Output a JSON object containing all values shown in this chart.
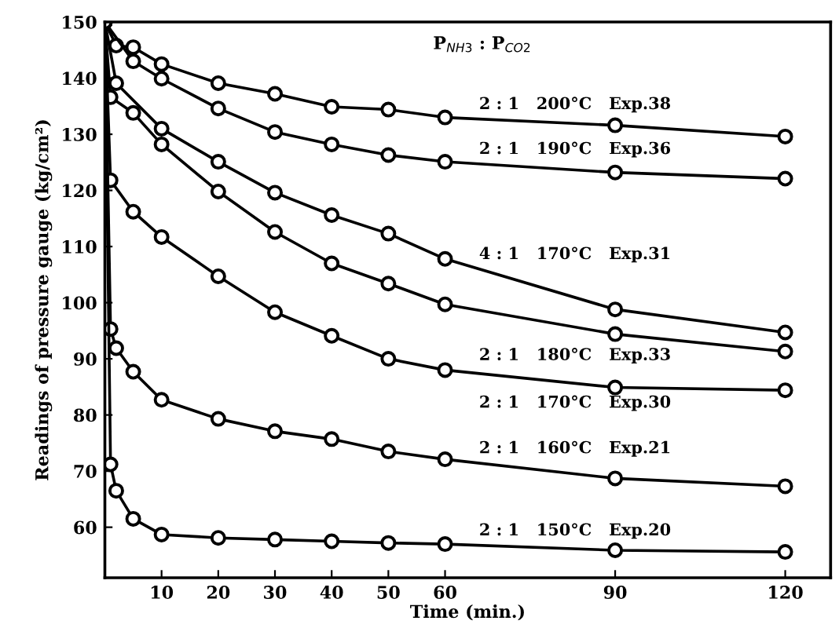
{
  "chart_data": {
    "type": "line",
    "xlabel": "Time (min.)",
    "ylabel": "Readings of pressure gauge (kg/cm²)",
    "legend_title": "P$_{NH3}$ : P$_{CO2}$",
    "xlim": [
      0,
      128
    ],
    "ylim": [
      51,
      150
    ],
    "xticks": [
      10,
      20,
      30,
      40,
      50,
      60,
      90,
      120
    ],
    "yticks": [
      60,
      70,
      80,
      90,
      100,
      110,
      120,
      130,
      140,
      150
    ],
    "marker": "circle",
    "line_style": "solid",
    "grid": false,
    "legend": false,
    "series": [
      {
        "name": "2 : 1   200°C   Exp.38",
        "color": "#000000",
        "x": [
          0,
          2,
          5,
          10,
          20,
          30,
          40,
          50,
          60,
          90,
          120
        ],
        "values": [
          150,
          145.8,
          145.5,
          142.5,
          139.1,
          137.2,
          134.9,
          134.4,
          133.0,
          131.6,
          129.6
        ]
      },
      {
        "name": "2 : 1   190°C   Exp.36",
        "color": "#000000",
        "x": [
          0,
          5,
          10,
          20,
          30,
          40,
          50,
          60,
          90,
          120
        ],
        "values": [
          150,
          143.0,
          139.9,
          134.6,
          130.4,
          128.2,
          126.3,
          125.1,
          123.2,
          122.1
        ]
      },
      {
        "name": "4 : 1   170°C   Exp.31",
        "color": "#000000",
        "x": [
          0,
          2,
          10,
          20,
          30,
          40,
          50,
          60,
          90,
          120
        ],
        "values": [
          150,
          139.1,
          131.0,
          125.1,
          119.6,
          115.6,
          112.3,
          107.8,
          98.8,
          94.7
        ]
      },
      {
        "name": "2 : 1   180°C   Exp.33",
        "color": "#000000",
        "x": [
          0,
          1,
          5,
          10,
          20,
          30,
          40,
          50,
          60,
          90,
          120
        ],
        "values": [
          150,
          136.6,
          133.8,
          128.2,
          119.8,
          112.6,
          107.0,
          103.4,
          99.7,
          94.4,
          91.3
        ]
      },
      {
        "name": "2 : 1   170°C   Exp.30",
        "color": "#000000",
        "x": [
          0,
          1,
          5,
          10,
          20,
          30,
          40,
          50,
          60,
          90,
          120
        ],
        "values": [
          150,
          121.8,
          116.2,
          111.7,
          104.7,
          98.3,
          94.1,
          90.0,
          88.0,
          84.9,
          84.4
        ]
      },
      {
        "name": "2 : 1   160°C   Exp.21",
        "color": "#000000",
        "x": [
          0,
          1,
          2,
          5,
          10,
          20,
          30,
          40,
          50,
          60,
          90,
          120
        ],
        "values": [
          150,
          95.3,
          91.9,
          87.7,
          82.7,
          79.3,
          77.1,
          75.7,
          73.5,
          72.1,
          68.7,
          67.3
        ]
      },
      {
        "name": "2 : 1   150°C   Exp.20",
        "color": "#000000",
        "x": [
          0,
          1,
          2,
          5,
          10,
          20,
          30,
          40,
          50,
          60,
          90,
          120
        ],
        "values": [
          150,
          71.2,
          66.5,
          61.5,
          58.7,
          58.1,
          57.8,
          57.5,
          57.2,
          57.0,
          55.9,
          55.6
        ]
      }
    ]
  }
}
